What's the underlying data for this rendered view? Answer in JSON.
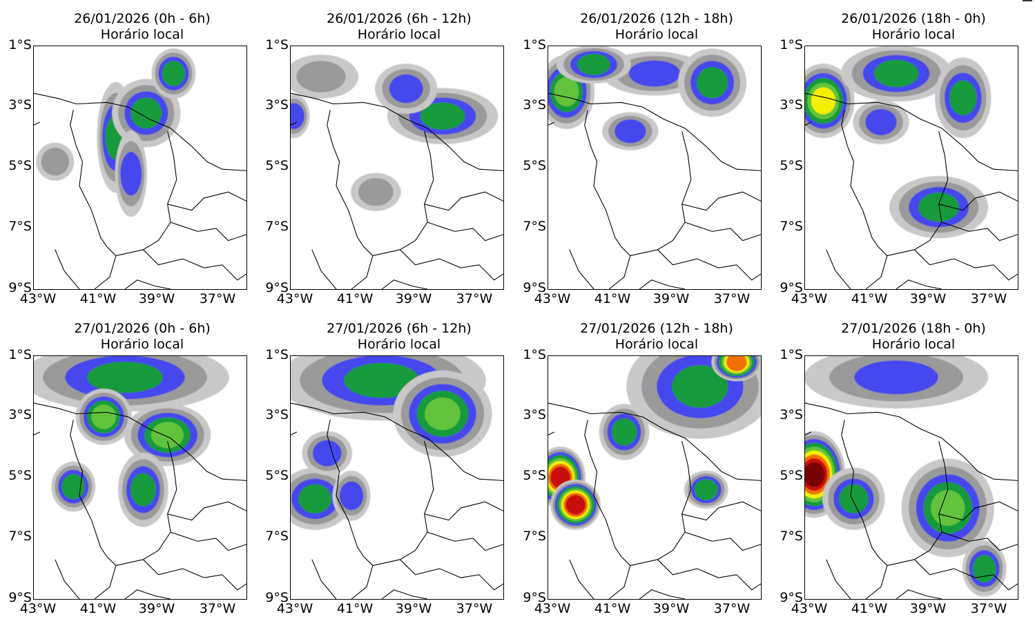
{
  "colors": {
    "light": "#c8c8c8",
    "mid": "#9a9a9a",
    "blue": "#4646ee",
    "green": "#129a3a",
    "lightgreen": "#62c23a",
    "yellow": "#f4f000",
    "orange": "#f07000",
    "red": "#c81010",
    "darkred": "#780000",
    "border": "#000000"
  },
  "axes": {
    "lat_labels": [
      "1°S",
      "3°S",
      "5°S",
      "7°S",
      "9°S"
    ],
    "lon_labels": [
      "43°W",
      "41°W",
      "39°W",
      "37°W"
    ]
  },
  "panels": [
    {
      "date": "26/01/2026 (0h - 6h)",
      "subtitle": "Horário local",
      "intensity": "low",
      "blobs": [
        {
          "lon": -40.3,
          "lat": -4.0,
          "rx": 0.4,
          "ry": 1.6,
          "level": 3
        },
        {
          "lon": -39.3,
          "lat": -3.2,
          "rx": 0.9,
          "ry": 0.9,
          "level": 3
        },
        {
          "lon": -38.4,
          "lat": -1.9,
          "rx": 0.5,
          "ry": 0.6,
          "level": 3
        },
        {
          "lon": -39.8,
          "lat": -5.2,
          "rx": 0.3,
          "ry": 1.2,
          "level": 2
        },
        {
          "lon": -42.3,
          "lat": -4.8,
          "rx": 0.4,
          "ry": 0.4,
          "level": 1
        }
      ]
    },
    {
      "date": "26/01/2026 (6h - 12h)",
      "subtitle": "Horário local",
      "intensity": "low",
      "blobs": [
        {
          "lon": -38.0,
          "lat": -3.3,
          "rx": 1.6,
          "ry": 0.7,
          "level": 3
        },
        {
          "lon": -39.2,
          "lat": -2.4,
          "rx": 0.8,
          "ry": 0.6,
          "level": 2
        },
        {
          "lon": -42.0,
          "lat": -2.0,
          "rx": 1.0,
          "ry": 0.5,
          "level": 1
        },
        {
          "lon": -40.2,
          "lat": -5.8,
          "rx": 0.6,
          "ry": 0.4,
          "level": 1
        },
        {
          "lon": -42.9,
          "lat": -3.3,
          "rx": 0.3,
          "ry": 0.5,
          "level": 2
        }
      ]
    },
    {
      "date": "26/01/2026 (12h - 18h)",
      "subtitle": "Horário local",
      "intensity": "low",
      "blobs": [
        {
          "lon": -42.4,
          "lat": -2.5,
          "rx": 0.7,
          "ry": 1.0,
          "level": 4
        },
        {
          "lon": -39.5,
          "lat": -1.9,
          "rx": 1.5,
          "ry": 0.5,
          "level": 2
        },
        {
          "lon": -37.6,
          "lat": -2.2,
          "rx": 0.9,
          "ry": 0.9,
          "level": 3
        },
        {
          "lon": -40.3,
          "lat": -3.8,
          "rx": 0.7,
          "ry": 0.4,
          "level": 2
        },
        {
          "lon": -41.5,
          "lat": -1.6,
          "rx": 1.0,
          "ry": 0.4,
          "level": 3
        }
      ]
    },
    {
      "date": "26/01/2026 (18h - 0h)",
      "subtitle": "Horário local",
      "intensity": "low",
      "blobs": [
        {
          "lon": -42.4,
          "lat": -2.8,
          "rx": 0.8,
          "ry": 1.0,
          "level": 5
        },
        {
          "lon": -40.0,
          "lat": -1.9,
          "rx": 1.6,
          "ry": 0.7,
          "level": 3
        },
        {
          "lon": -37.8,
          "lat": -2.7,
          "rx": 0.7,
          "ry": 1.1,
          "level": 3
        },
        {
          "lon": -38.6,
          "lat": -6.3,
          "rx": 1.4,
          "ry": 0.8,
          "level": 3
        },
        {
          "lon": -40.5,
          "lat": -3.5,
          "rx": 0.7,
          "ry": 0.5,
          "level": 2
        }
      ]
    },
    {
      "date": "27/01/2026 (0h - 6h)",
      "subtitle": "Horário local",
      "intensity": "mid",
      "blobs": [
        {
          "lon": -40.0,
          "lat": -1.7,
          "rx": 3.2,
          "ry": 0.9,
          "level": 3
        },
        {
          "lon": -40.7,
          "lat": -3.0,
          "rx": 0.7,
          "ry": 0.7,
          "level": 4
        },
        {
          "lon": -38.6,
          "lat": -3.6,
          "rx": 1.2,
          "ry": 0.8,
          "level": 4
        },
        {
          "lon": -39.4,
          "lat": -5.4,
          "rx": 0.6,
          "ry": 1.0,
          "level": 3
        },
        {
          "lon": -41.7,
          "lat": -5.3,
          "rx": 0.5,
          "ry": 0.6,
          "level": 3
        }
      ]
    },
    {
      "date": "27/01/2026 (6h - 12h)",
      "subtitle": "Horário local",
      "intensity": "mid",
      "blobs": [
        {
          "lon": -40.0,
          "lat": -1.8,
          "rx": 3.2,
          "ry": 1.1,
          "level": 3
        },
        {
          "lon": -38.0,
          "lat": -2.9,
          "rx": 1.4,
          "ry": 1.2,
          "level": 4
        },
        {
          "lon": -42.2,
          "lat": -5.7,
          "rx": 1.0,
          "ry": 0.8,
          "level": 3
        },
        {
          "lon": -41.0,
          "lat": -5.6,
          "rx": 0.4,
          "ry": 0.6,
          "level": 2
        },
        {
          "lon": -41.8,
          "lat": -4.2,
          "rx": 0.6,
          "ry": 0.5,
          "level": 2
        }
      ]
    },
    {
      "date": "27/01/2026 (12h - 18h)",
      "subtitle": "Horário local",
      "intensity": "high",
      "blobs": [
        {
          "lon": -38.0,
          "lat": -2.0,
          "rx": 2.2,
          "ry": 1.5,
          "level": 3
        },
        {
          "lon": -36.8,
          "lat": -1.2,
          "rx": 0.6,
          "ry": 0.4,
          "level": 6
        },
        {
          "lon": -42.6,
          "lat": -5.0,
          "rx": 0.6,
          "ry": 0.8,
          "level": 7
        },
        {
          "lon": -42.1,
          "lat": -5.9,
          "rx": 0.6,
          "ry": 0.6,
          "level": 7
        },
        {
          "lon": -40.5,
          "lat": -3.5,
          "rx": 0.6,
          "ry": 0.7,
          "level": 3
        },
        {
          "lon": -37.8,
          "lat": -5.4,
          "rx": 0.5,
          "ry": 0.4,
          "level": 3
        }
      ]
    },
    {
      "date": "27/01/2026 (18h - 0h)",
      "subtitle": "Horário local",
      "intensity": "high",
      "blobs": [
        {
          "lon": -42.7,
          "lat": -4.9,
          "rx": 0.8,
          "ry": 1.2,
          "level": 8
        },
        {
          "lon": -38.3,
          "lat": -6.0,
          "rx": 1.3,
          "ry": 1.4,
          "level": 4
        },
        {
          "lon": -37.1,
          "lat": -8.0,
          "rx": 0.5,
          "ry": 0.7,
          "level": 3
        },
        {
          "lon": -40.0,
          "lat": -1.7,
          "rx": 2.8,
          "ry": 0.8,
          "level": 2
        },
        {
          "lon": -41.4,
          "lat": -5.7,
          "rx": 0.8,
          "ry": 0.8,
          "level": 3
        }
      ]
    }
  ]
}
